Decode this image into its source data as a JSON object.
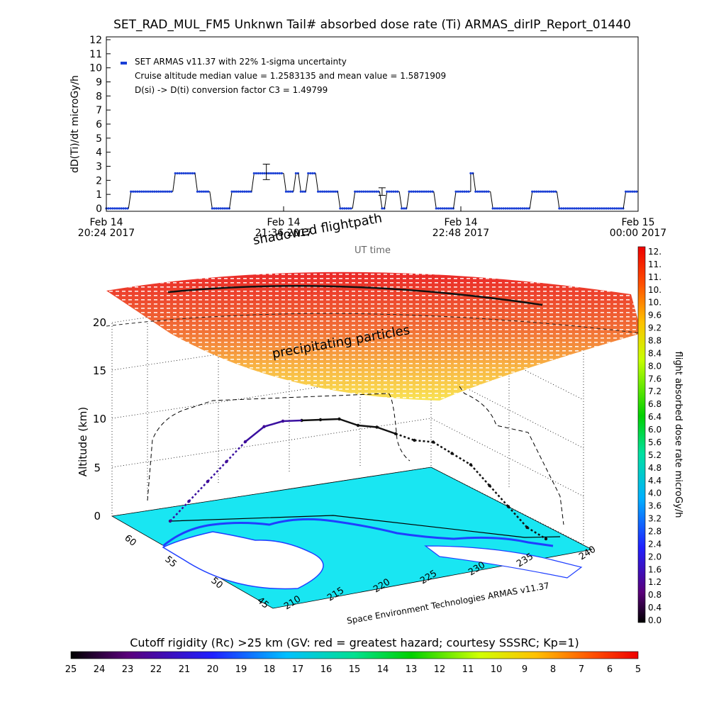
{
  "header": {
    "title": "SET_RAD_MUL_FM5 Unknwn Tail#  absorbed dose rate (Ti) ARMAS_dirIP_Report_01440"
  },
  "time_panel": {
    "ylabel": "dD(Ti)/dt microGy/h",
    "legend": [
      "SET ARMAS v11.37 with 22% 1-sigma uncertainty",
      "Cruise altitude median value = 1.2583135 and mean value = 1.5871909",
      "D(si) -> D(ti) conversion factor C3 = 1.49799"
    ],
    "xtick_date": [
      "Feb 14",
      "Feb 14",
      "Feb 14",
      "Feb 15"
    ],
    "xtick_time": [
      "20:24 2017",
      "21:36 2017",
      "22:48 2017",
      "00:00 2017"
    ],
    "xlabel": "UT time",
    "series_color": "#1a3fd6",
    "line_color": "#000000"
  },
  "globe_panel": {
    "shadowed_label": "shadowed flightpath",
    "precip_label": "precipitating particles",
    "zlabel": "Altitude (km)",
    "z_ticks": [
      "0",
      "5",
      "10",
      "15",
      "20"
    ],
    "lat_ticks": [
      "45",
      "50",
      "55",
      "60"
    ],
    "lon_ticks": [
      "210",
      "215",
      "220",
      "225",
      "230",
      "235",
      "240"
    ],
    "credit": "Space Environment Technologies ARMAS v11.37",
    "map_color": "#19e6f2",
    "coast_color": "#1f3fff"
  },
  "right_colorbar": {
    "label": "flight absorbed dose rate microGy/h",
    "ticks": [
      "12.",
      "11.",
      "11.",
      "10.",
      "10.",
      "9.6",
      "9.2",
      "8.8",
      "8.4",
      "8.0",
      "7.6",
      "7.2",
      "6.8",
      "6.4",
      "6.0",
      "5.6",
      "5.2",
      "4.8",
      "4.4",
      "4.0",
      "3.6",
      "3.2",
      "2.8",
      "2.4",
      "2.0",
      "1.6",
      "1.2",
      "0.8",
      "0.4",
      "0.0"
    ]
  },
  "bottom_colorbar": {
    "title": "Cutoff rigidity (Rc) >25 km (GV: red = greatest hazard; courtesy SSSRC; Kp=1)",
    "ticks": [
      "25",
      "24",
      "23",
      "22",
      "21",
      "20",
      "19",
      "18",
      "17",
      "16",
      "15",
      "14",
      "13",
      "12",
      "11",
      "10",
      "9",
      "8",
      "7",
      "6",
      "5"
    ]
  },
  "chart_data": [
    {
      "type": "line",
      "title": "SET_RAD_MUL_FM5 Unknwn Tail#  absorbed dose rate (Ti) ARMAS_dirIP_Report_01440",
      "xlabel": "UT time",
      "ylabel": "dD(Ti)/dt microGy/h",
      "ylim": [
        0,
        12
      ],
      "xlim": [
        "2017-02-14 20:24",
        "2017-02-15 00:00"
      ],
      "y_ticks": [
        0,
        1,
        2,
        3,
        4,
        5,
        6,
        7,
        8,
        9,
        10,
        11,
        12
      ],
      "series": [
        {
          "name": "SET ARMAS v11.37 with 22% 1-sigma uncertainty",
          "segments": [
            {
              "x": [
                "2017-02-14 20:24",
                "2017-02-14 20:33"
              ],
              "y": 0
            },
            {
              "x": [
                "2017-02-14 20:34",
                "2017-02-14 20:51"
              ],
              "y": 1.2
            },
            {
              "x": [
                "2017-02-14 20:52",
                "2017-02-14 21:00"
              ],
              "y": 2.5
            },
            {
              "x": [
                "2017-02-14 21:01",
                "2017-02-14 21:06"
              ],
              "y": 1.2
            },
            {
              "x": [
                "2017-02-14 21:07",
                "2017-02-14 21:14"
              ],
              "y": 0
            },
            {
              "x": [
                "2017-02-14 21:15",
                "2017-02-14 21:23"
              ],
              "y": 1.2
            },
            {
              "x": [
                "2017-02-14 21:24",
                "2017-02-14 21:36"
              ],
              "y": 2.5
            },
            {
              "x": [
                "2017-02-14 21:37",
                "2017-02-14 21:40"
              ],
              "y": 1.2
            },
            {
              "x": [
                "2017-02-14 21:41",
                "2017-02-14 21:42"
              ],
              "y": 2.5
            },
            {
              "x": [
                "2017-02-14 21:43",
                "2017-02-14 21:45"
              ],
              "y": 1.2
            },
            {
              "x": [
                "2017-02-14 21:46",
                "2017-02-14 21:49"
              ],
              "y": 2.5
            },
            {
              "x": [
                "2017-02-14 21:50",
                "2017-02-14 21:58"
              ],
              "y": 1.2
            },
            {
              "x": [
                "2017-02-14 21:59",
                "2017-02-14 22:04"
              ],
              "y": 0
            },
            {
              "x": [
                "2017-02-14 22:05",
                "2017-02-14 22:15"
              ],
              "y": 1.2
            },
            {
              "x": [
                "2017-02-14 22:16",
                "2017-02-14 22:17"
              ],
              "y": 0
            },
            {
              "x": [
                "2017-02-14 22:18",
                "2017-02-14 22:23"
              ],
              "y": 1.2
            },
            {
              "x": [
                "2017-02-14 22:24",
                "2017-02-14 22:26"
              ],
              "y": 0
            },
            {
              "x": [
                "2017-02-14 22:27",
                "2017-02-14 22:37"
              ],
              "y": 1.2
            },
            {
              "x": [
                "2017-02-14 22:38",
                "2017-02-14 22:45"
              ],
              "y": 0
            },
            {
              "x": [
                "2017-02-14 22:46",
                "2017-02-14 22:52"
              ],
              "y": 1.2
            },
            {
              "x": [
                "2017-02-14 22:52",
                "2017-02-14 22:53"
              ],
              "y": 2.5
            },
            {
              "x": [
                "2017-02-14 22:54",
                "2017-02-14 23:00"
              ],
              "y": 1.2
            },
            {
              "x": [
                "2017-02-14 23:01",
                "2017-02-14 23:16"
              ],
              "y": 0
            },
            {
              "x": [
                "2017-02-14 23:17",
                "2017-02-14 23:27"
              ],
              "y": 1.2
            },
            {
              "x": [
                "2017-02-14 23:28",
                "2017-02-14 23:54"
              ],
              "y": 0
            },
            {
              "x": [
                "2017-02-14 23:55",
                "2017-02-15 00:00"
              ],
              "y": 1.2
            }
          ],
          "error_bars": [
            {
              "x": "2017-02-14 21:29",
              "y": 2.6,
              "err": 0.55
            },
            {
              "x": "2017-02-14 22:16",
              "y": 1.2,
              "err": 0.27
            }
          ]
        }
      ]
    },
    {
      "type": "scatter",
      "title": "",
      "xlabel": "",
      "ylabel": "Altitude (km)",
      "zlim": [
        0,
        20
      ],
      "lat_range": [
        45,
        60
      ],
      "lon_range": [
        210,
        240
      ],
      "series": [
        {
          "name": "",
          "note": "flightpath altitude profile (km)",
          "altitude_profile": [
            0,
            2,
            4,
            6,
            8,
            9.5,
            10,
            10,
            10,
            10,
            10,
            10,
            9.5,
            9,
            9,
            8,
            7,
            5,
            3,
            1,
            0
          ]
        }
      ]
    }
  ]
}
